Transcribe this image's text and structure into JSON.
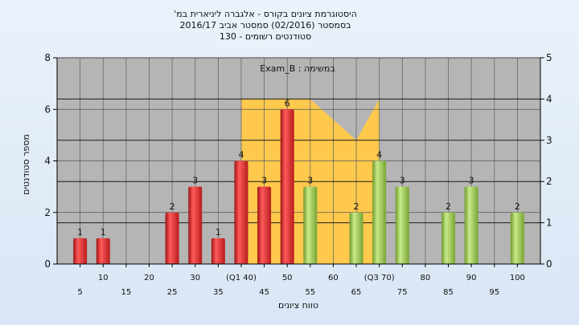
{
  "chart_data": {
    "type": "bar",
    "title_lines": [
      "היסטוגרמת ציונים בקורס - אלגברה ליניארית במ'",
      "בסמסטר  (02/2016)  סמסטר אביב 2016/17",
      "סטודנטים רשומים - 130"
    ],
    "subtitle": "במשימה : Exam_B",
    "xlabel": "טווח ציונים",
    "ylabel": "מספר סטודנטים",
    "ylim": [
      0,
      8
    ],
    "y_ticks": [
      0,
      2,
      4,
      6,
      8
    ],
    "y2lim": [
      0,
      5
    ],
    "y2_ticks": [
      0,
      1,
      2,
      3,
      4,
      5
    ],
    "xlim": [
      0,
      105
    ],
    "x_ticks": [
      {
        "x": 5,
        "label": "5"
      },
      {
        "x": 10,
        "label": "10"
      },
      {
        "x": 15,
        "label": "15"
      },
      {
        "x": 20,
        "label": "20"
      },
      {
        "x": 25,
        "label": "25"
      },
      {
        "x": 30,
        "label": "30"
      },
      {
        "x": 35,
        "label": "35"
      },
      {
        "x": 40,
        "label": "(Q1 40)"
      },
      {
        "x": 45,
        "label": "45"
      },
      {
        "x": 50,
        "label": "50"
      },
      {
        "x": 55,
        "label": "55"
      },
      {
        "x": 60,
        "label": "60"
      },
      {
        "x": 65,
        "label": "65"
      },
      {
        "x": 70,
        "label": "(Q3 70)"
      },
      {
        "x": 75,
        "label": "75"
      },
      {
        "x": 80,
        "label": "80"
      },
      {
        "x": 85,
        "label": "85"
      },
      {
        "x": 90,
        "label": "90"
      },
      {
        "x": 95,
        "label": "95"
      },
      {
        "x": 100,
        "label": "100"
      }
    ],
    "bars": [
      {
        "x": 5,
        "value": 1,
        "label": "1",
        "color": "red"
      },
      {
        "x": 10,
        "value": 1,
        "label": "1",
        "color": "red"
      },
      {
        "x": 25,
        "value": 2,
        "label": "2",
        "color": "red"
      },
      {
        "x": 30,
        "value": 3,
        "label": "3",
        "color": "red"
      },
      {
        "x": 35,
        "value": 1,
        "label": "1",
        "color": "red"
      },
      {
        "x": 40,
        "value": 4,
        "label": "4",
        "color": "red"
      },
      {
        "x": 45,
        "value": 3,
        "label": "3",
        "color": "red"
      },
      {
        "x": 50,
        "value": 6,
        "label": "6",
        "color": "red"
      },
      {
        "x": 55,
        "value": 3,
        "label": "3",
        "color": "green"
      },
      {
        "x": 65,
        "value": 2,
        "label": "2",
        "color": "green"
      },
      {
        "x": 70,
        "value": 4,
        "label": "4",
        "color": "green"
      },
      {
        "x": 75,
        "value": 3,
        "label": "3",
        "color": "green"
      },
      {
        "x": 85,
        "value": 2,
        "label": "2",
        "color": "green"
      },
      {
        "x": 90,
        "value": 3,
        "label": "3",
        "color": "green"
      },
      {
        "x": 100,
        "value": 2,
        "label": "2",
        "color": "green"
      }
    ],
    "iqr_area": {
      "axis": "right",
      "points": [
        [
          40,
          4
        ],
        [
          55,
          4
        ],
        [
          65,
          3
        ],
        [
          70,
          4
        ]
      ]
    },
    "colors": {
      "red": "#e03030",
      "green": "#9cc94e",
      "iqr_area": "#ffc94d",
      "plot_bg": "#b5b5b5",
      "grid": "#1a1a1a"
    },
    "grid": true
  }
}
